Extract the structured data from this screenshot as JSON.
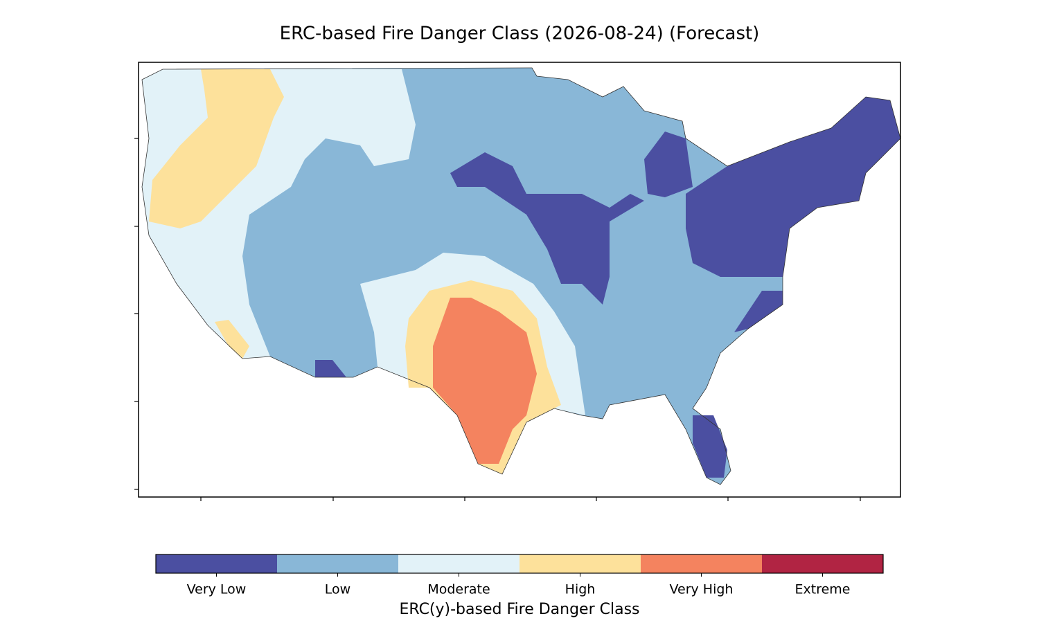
{
  "title": "ERC-based Fire Danger Class (2026-08-24) (Forecast)",
  "colorbar": {
    "label": "ERC(y)-based Fire Danger Class",
    "classes": [
      {
        "name": "Very Low",
        "color": "#4b4fa1"
      },
      {
        "name": "Low",
        "color": "#89b7d7"
      },
      {
        "name": "Moderate",
        "color": "#e2f2f8"
      },
      {
        "name": "High",
        "color": "#fde19b"
      },
      {
        "name": "Very High",
        "color": "#f4835f"
      },
      {
        "name": "Extreme",
        "color": "#b12443"
      }
    ]
  }
}
